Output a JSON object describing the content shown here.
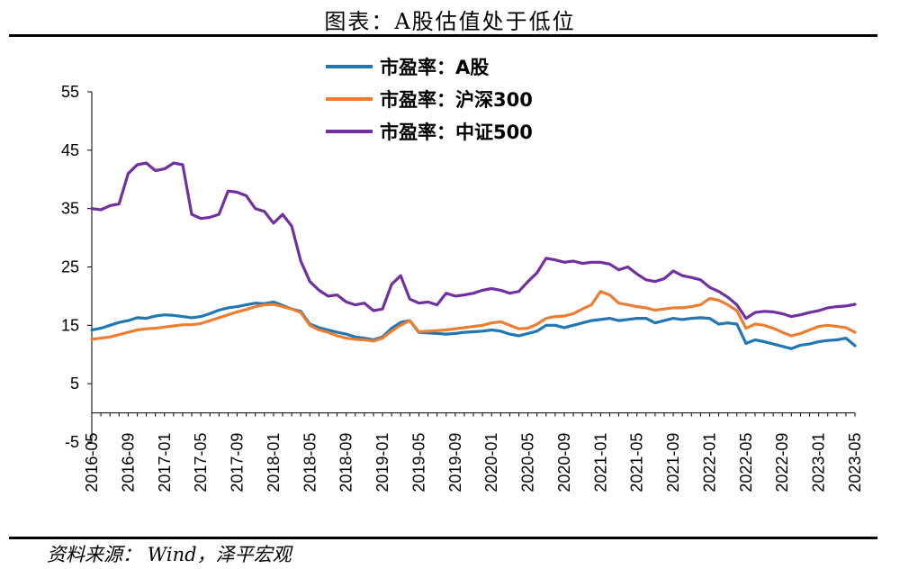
{
  "header": {
    "title": "图表：A股估值处于低位"
  },
  "footer": {
    "source": "资料来源： Wind，泽平宏观"
  },
  "chart_data": {
    "type": "line",
    "title": "图表：A股估值处于低位",
    "xlabel": "",
    "ylabel": "",
    "ylim": [
      -5,
      55
    ],
    "yticks": [
      -5,
      5,
      15,
      25,
      35,
      45,
      55
    ],
    "xticks": [
      "2016-05",
      "2016-09",
      "2017-01",
      "2017-05",
      "2017-09",
      "2018-01",
      "2018-05",
      "2018-09",
      "2019-01",
      "2019-05",
      "2019-09",
      "2020-01",
      "2020-05",
      "2020-09",
      "2021-01",
      "2021-05",
      "2021-09",
      "2022-01",
      "2022-05",
      "2022-09",
      "2023-01",
      "2023-05"
    ],
    "grid": false,
    "legend_position": "top-center",
    "x": [
      "2016-05",
      "2016-06",
      "2016-07",
      "2016-08",
      "2016-09",
      "2016-10",
      "2016-11",
      "2016-12",
      "2017-01",
      "2017-02",
      "2017-03",
      "2017-04",
      "2017-05",
      "2017-06",
      "2017-07",
      "2017-08",
      "2017-09",
      "2017-10",
      "2017-11",
      "2017-12",
      "2018-01",
      "2018-02",
      "2018-03",
      "2018-04",
      "2018-05",
      "2018-06",
      "2018-07",
      "2018-08",
      "2018-09",
      "2018-10",
      "2018-11",
      "2018-12",
      "2019-01",
      "2019-02",
      "2019-03",
      "2019-04",
      "2019-05",
      "2019-06",
      "2019-07",
      "2019-08",
      "2019-09",
      "2019-10",
      "2019-11",
      "2019-12",
      "2020-01",
      "2020-02",
      "2020-03",
      "2020-04",
      "2020-05",
      "2020-06",
      "2020-07",
      "2020-08",
      "2020-09",
      "2020-10",
      "2020-11",
      "2020-12",
      "2021-01",
      "2021-02",
      "2021-03",
      "2021-04",
      "2021-05",
      "2021-06",
      "2021-07",
      "2021-08",
      "2021-09",
      "2021-10",
      "2021-11",
      "2021-12",
      "2022-01",
      "2022-02",
      "2022-03",
      "2022-04",
      "2022-05",
      "2022-06",
      "2022-07",
      "2022-08",
      "2022-09",
      "2022-10",
      "2022-11",
      "2022-12",
      "2023-01",
      "2023-02",
      "2023-03",
      "2023-04",
      "2023-05"
    ],
    "series": [
      {
        "name": "市盈率：A股",
        "color": "#1f77b4",
        "values": [
          14.2,
          14.5,
          15.0,
          15.5,
          15.8,
          16.3,
          16.2,
          16.6,
          16.8,
          16.7,
          16.5,
          16.3,
          16.5,
          17.0,
          17.6,
          18.0,
          18.2,
          18.5,
          18.8,
          18.7,
          19.0,
          18.4,
          17.8,
          17.4,
          15.2,
          14.6,
          14.2,
          13.8,
          13.5,
          13.0,
          12.8,
          12.5,
          13.0,
          14.5,
          15.5,
          15.8,
          13.8,
          13.7,
          13.6,
          13.5,
          13.6,
          13.8,
          13.9,
          14.0,
          14.2,
          14.0,
          13.5,
          13.2,
          13.6,
          14.0,
          15.0,
          15.0,
          14.6,
          15.0,
          15.4,
          15.8,
          16.0,
          16.2,
          15.8,
          16.0,
          16.2,
          16.2,
          15.4,
          15.8,
          16.2,
          16.0,
          16.2,
          16.3,
          16.2,
          15.2,
          15.4,
          15.2,
          11.9,
          12.5,
          12.2,
          11.8,
          11.4,
          11.0,
          11.6,
          11.8,
          12.2,
          12.4,
          12.5,
          12.8,
          11.5
        ]
      },
      {
        "name": "市盈率：沪深300",
        "color": "#ed7d31",
        "values": [
          12.6,
          12.8,
          13.0,
          13.4,
          13.8,
          14.2,
          14.4,
          14.5,
          14.7,
          14.9,
          15.1,
          15.1,
          15.3,
          15.8,
          16.3,
          16.8,
          17.3,
          17.7,
          18.2,
          18.5,
          18.6,
          18.2,
          17.8,
          17.2,
          15.0,
          14.2,
          13.8,
          13.2,
          12.8,
          12.6,
          12.5,
          12.3,
          12.8,
          14.0,
          15.0,
          15.8,
          13.9,
          14.0,
          14.1,
          14.2,
          14.4,
          14.6,
          14.8,
          15.0,
          15.4,
          15.6,
          15.0,
          14.4,
          14.5,
          15.2,
          16.2,
          16.5,
          16.6,
          17.0,
          17.8,
          18.5,
          20.8,
          20.2,
          18.8,
          18.5,
          18.2,
          18.0,
          17.6,
          17.8,
          18.0,
          18.0,
          18.2,
          18.5,
          19.6,
          19.3,
          18.5,
          17.5,
          14.5,
          15.2,
          15.0,
          14.5,
          13.8,
          13.2,
          13.6,
          14.2,
          14.8,
          15.0,
          14.8,
          14.6,
          13.8
        ]
      },
      {
        "name": "市盈率：中证500",
        "color": "#7030a0",
        "values": [
          35.0,
          34.8,
          35.5,
          35.8,
          41.0,
          42.5,
          42.8,
          41.5,
          41.8,
          42.8,
          42.5,
          34.0,
          33.3,
          33.5,
          34.0,
          38.0,
          37.8,
          37.2,
          35.0,
          34.5,
          32.5,
          34.0,
          32.0,
          26.0,
          22.5,
          21.0,
          20.0,
          20.2,
          19.0,
          18.5,
          18.8,
          17.5,
          17.8,
          22.0,
          23.5,
          19.5,
          18.8,
          19.0,
          18.5,
          20.5,
          20.0,
          20.2,
          20.5,
          21.0,
          21.3,
          21.0,
          20.5,
          20.8,
          22.5,
          24.0,
          26.5,
          26.2,
          25.8,
          26.0,
          25.6,
          25.8,
          25.8,
          25.5,
          24.5,
          25.0,
          23.8,
          22.8,
          22.5,
          23.0,
          24.3,
          23.5,
          23.2,
          22.8,
          21.5,
          20.8,
          19.8,
          18.5,
          16.2,
          17.2,
          17.4,
          17.3,
          17.0,
          16.5,
          16.8,
          17.2,
          17.5,
          18.0,
          18.2,
          18.3,
          18.6
        ]
      }
    ]
  }
}
